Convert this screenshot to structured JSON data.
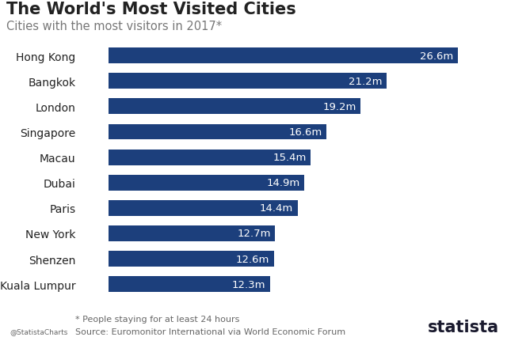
{
  "chart_data": {
    "type": "bar",
    "orientation": "horizontal",
    "title": "The World's Most Visited Cities",
    "subtitle": "Cities with the most visitors in 2017*",
    "categories": [
      "Hong Kong",
      "Bangkok",
      "London",
      "Singapore",
      "Macau",
      "Dubai",
      "Paris",
      "New York",
      "Shenzen",
      "Kuala Lumpur"
    ],
    "values": [
      26.6,
      21.2,
      19.2,
      16.6,
      15.4,
      14.9,
      14.4,
      12.7,
      12.6,
      12.3
    ],
    "value_labels": [
      "26.6m",
      "21.2m",
      "19.2m",
      "16.6m",
      "15.4m",
      "14.9m",
      "14.4m",
      "12.7m",
      "12.6m",
      "12.3m"
    ],
    "data_labels": true,
    "color": "#1c3f7c",
    "grid": false,
    "tick_labels": "y",
    "annotations": [
      "* People staying for at least 24 hours",
      "Source: Euromonitor International via World Economic Forum",
      "@StatistaCharts",
      "statista"
    ]
  }
}
